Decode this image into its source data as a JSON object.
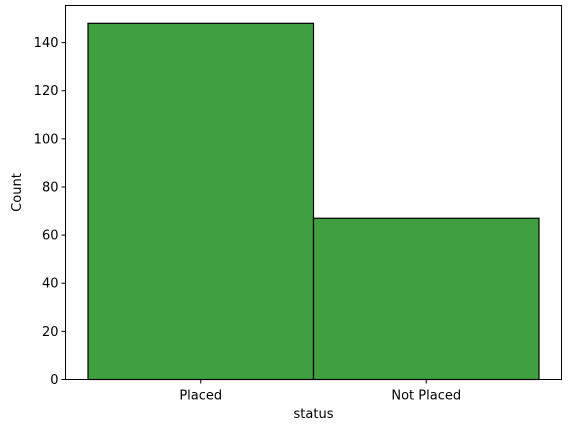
{
  "chart_data": {
    "type": "bar",
    "categories": [
      "Placed",
      "Not Placed"
    ],
    "values": [
      148,
      67
    ],
    "title": "",
    "xlabel": "status",
    "ylabel": "Count",
    "ylim": [
      0,
      155.4
    ],
    "yticks": [
      0,
      20,
      40,
      60,
      80,
      100,
      120,
      140
    ],
    "ytick_labels": [
      "0",
      "20",
      "40",
      "60",
      "80",
      "100",
      "120",
      "140"
    ],
    "grid": false,
    "bar_color": "#40a040",
    "edge_color": "#000000"
  }
}
